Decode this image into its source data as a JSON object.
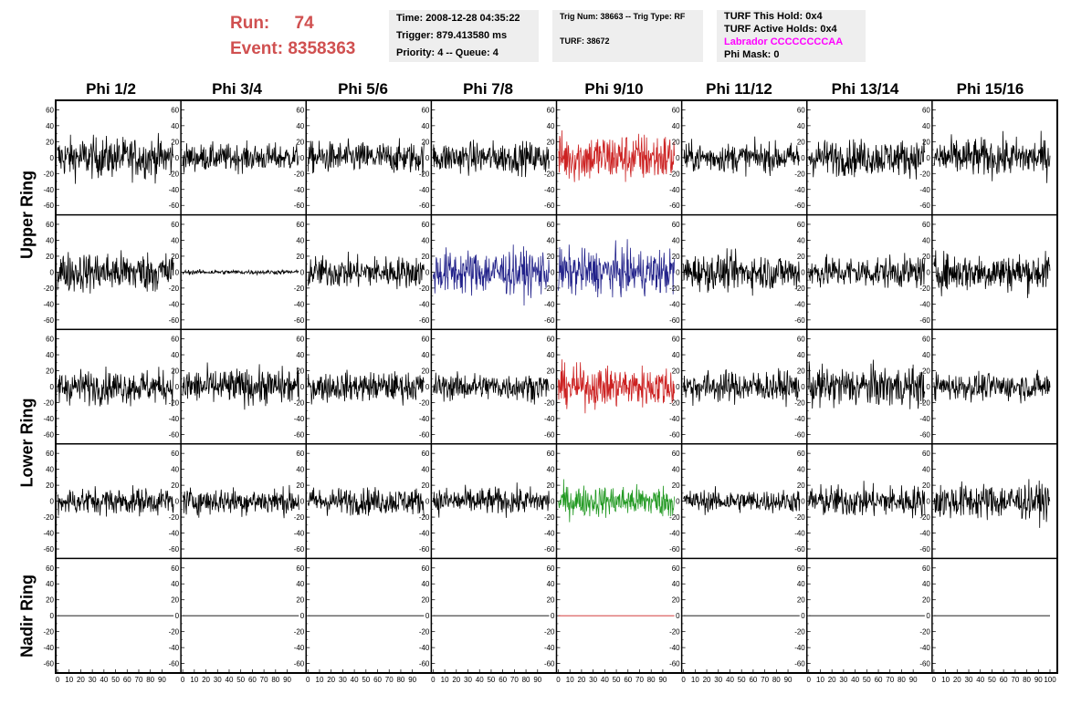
{
  "header": {
    "run_label": "Run:",
    "run_value": "74",
    "event_label": "Event:",
    "event_value": "8358363",
    "run_color": "#d05050",
    "panel1": {
      "time": "Time: 2008-12-28 04:35:22",
      "trigger": "Trigger: 879.413580 ms",
      "priority": "Priority: 4 -- Queue: 4"
    },
    "panel2": {
      "trig": "Trig Num: 38663 -- Trig Type: RF",
      "turf": "TURF: 38672"
    },
    "panel3": {
      "this_hold": "TURF This Hold: 0x4",
      "active_holds": "TURF Active Holds: 0x4",
      "labrador": "Labrador CCCCCCCCAA",
      "phi_mask": "Phi Mask: 0"
    },
    "labrador_color": "#ff00ff"
  },
  "columns": [
    "Phi 1/2",
    "Phi 3/4",
    "Phi 5/6",
    "Phi 7/8",
    "Phi 9/10",
    "Phi 11/12",
    "Phi 13/14",
    "Phi 15/16"
  ],
  "rings": [
    "Upper Ring",
    "Lower Ring",
    "Nadir Ring"
  ],
  "chart_data": {
    "type": "line",
    "ylim": [
      -65,
      65
    ],
    "xlim": [
      0,
      100
    ],
    "y_ticks": [
      "60",
      "40",
      "20",
      "0",
      "-20",
      "-40",
      "-60"
    ],
    "x_tick_labels": [
      "0",
      "10",
      "20",
      "30",
      "40",
      "50",
      "60",
      "70",
      "80",
      "90",
      "100"
    ],
    "colors": {
      "default": "#000000",
      "red": "#cc2222",
      "blue": "#22228a",
      "green": "#229922"
    },
    "rows": [
      {
        "ring": "Upper Ring",
        "amps": [
          18,
          12,
          14,
          14,
          22,
          13,
          16,
          17
        ],
        "colors": [
          "default",
          "default",
          "default",
          "default",
          "red",
          "default",
          "default",
          "default"
        ]
      },
      {
        "ring": "Upper Ring",
        "amps": [
          18,
          2,
          14,
          20,
          20,
          16,
          14,
          17
        ],
        "colors": [
          "default",
          "default",
          "default",
          "blue",
          "blue",
          "default",
          "default",
          "default"
        ]
      },
      {
        "ring": "Lower Ring",
        "amps": [
          15,
          16,
          13,
          12,
          18,
          14,
          18,
          12
        ],
        "colors": [
          "default",
          "default",
          "default",
          "default",
          "red",
          "default",
          "default",
          "default"
        ]
      },
      {
        "ring": "Lower Ring",
        "amps": [
          12,
          12,
          12,
          12,
          14,
          10,
          14,
          16
        ],
        "colors": [
          "default",
          "default",
          "default",
          "default",
          "green",
          "default",
          "default",
          "default"
        ]
      },
      {
        "ring": "Nadir Ring",
        "amps": [
          0,
          0,
          0,
          0,
          0,
          0,
          0,
          0
        ],
        "colors": [
          "default",
          "default",
          "default",
          "default",
          "red",
          "default",
          "default",
          "default"
        ]
      }
    ]
  }
}
